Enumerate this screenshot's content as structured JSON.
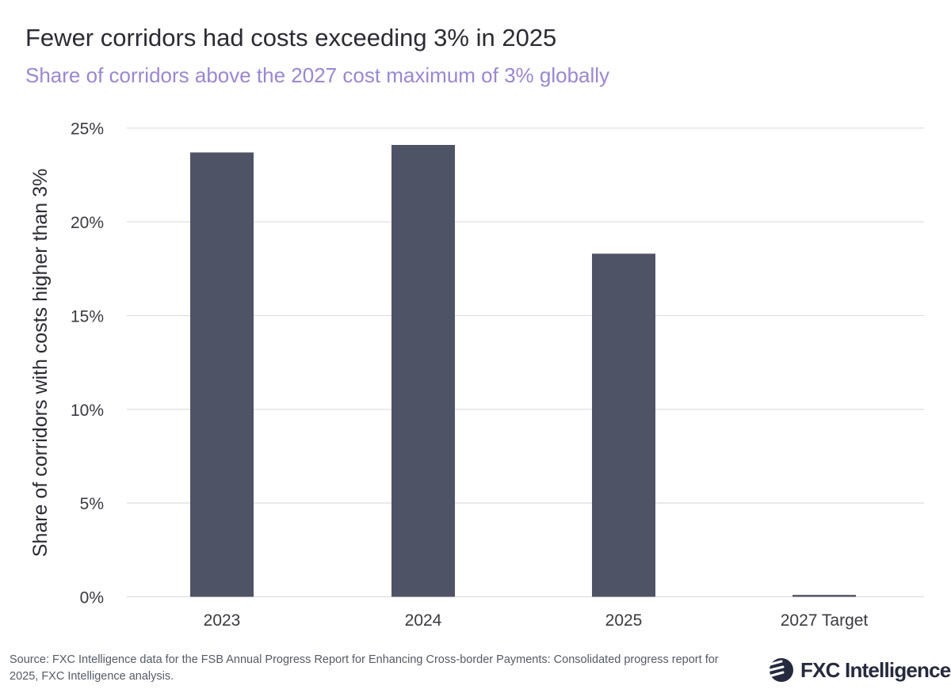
{
  "chart_data": {
    "type": "bar",
    "title": "Fewer corridors had costs exceeding 3% in 2025",
    "subtitle": "Share of corridors above the 2027 cost maximum of 3% globally",
    "xlabel": "",
    "ylabel": "Share of corridors with costs higher than 3%",
    "categories": [
      "2023",
      "2024",
      "2025",
      "2027 Target"
    ],
    "values": [
      23.7,
      24.1,
      18.3,
      0.1
    ],
    "ylim": [
      0,
      25
    ],
    "yticks": [
      0,
      5,
      10,
      15,
      20,
      25
    ],
    "ytick_labels": [
      "0%",
      "5%",
      "10%",
      "15%",
      "20%",
      "25%"
    ],
    "grid": "horizontal",
    "bar_color": "#4f5366"
  },
  "source": "Source: FXC Intelligence data for the FSB Annual Progress Report for Enhancing Cross-border Payments: Consolidated progress report for 2025, FXC Intelligence analysis.",
  "logo": {
    "text": "FXC Intelligence",
    "color": "#262a3e"
  }
}
